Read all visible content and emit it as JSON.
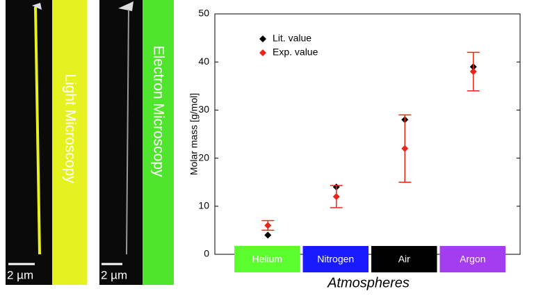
{
  "panels": [
    {
      "label": "Light Microscopy",
      "scale_bar": "2 µm"
    },
    {
      "label": "Electron Microscopy",
      "scale_bar": "2 µm"
    }
  ],
  "chart_data": {
    "type": "scatter",
    "y_label": "Molar mass [g/mol]",
    "x_label": "Atmospheres",
    "categories": [
      "Helium",
      "Nitrogen",
      "Air",
      "Argon"
    ],
    "category_colors": [
      "#5bff2e",
      "#1a1aff",
      "#000000",
      "#a43cf0"
    ],
    "series": [
      {
        "name": "Lit. value",
        "color": "#000000",
        "values": [
          4,
          14,
          28,
          39
        ]
      },
      {
        "name": "Exp. value",
        "color": "#e8251a",
        "values": [
          6,
          12,
          22,
          38
        ],
        "errors": [
          1,
          2.3,
          7,
          4
        ]
      }
    ],
    "ylim": [
      0,
      50
    ],
    "yticks": [
      0,
      10,
      20,
      30,
      40,
      50
    ],
    "legend": "upper left"
  }
}
